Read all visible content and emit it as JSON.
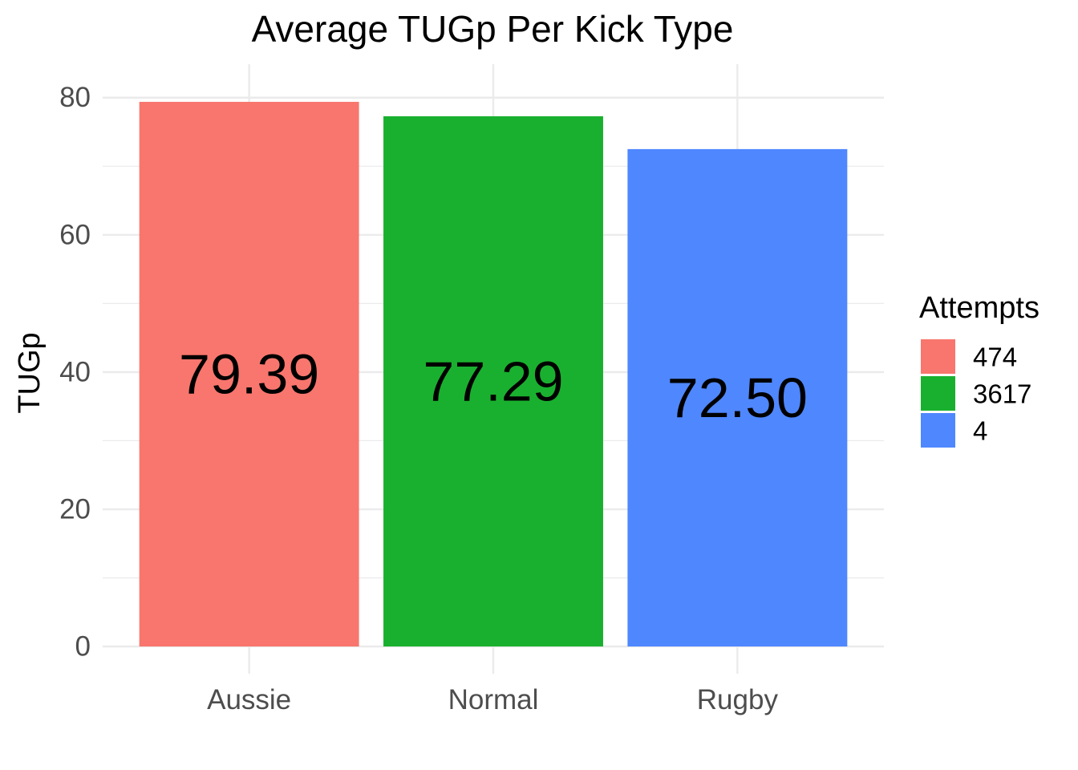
{
  "chart_data": {
    "type": "bar",
    "title": "Average TUGp Per Kick Type",
    "xlabel": "",
    "ylabel": "TUGp",
    "categories": [
      "Aussie",
      "Normal",
      "Rugby"
    ],
    "values": [
      79.39,
      77.29,
      72.5
    ],
    "data_labels": [
      "79.39",
      "77.29",
      "72.50"
    ],
    "ylim": [
      0,
      80
    ],
    "yticks": [
      0,
      20,
      40,
      60,
      80
    ],
    "grid": true,
    "legend": {
      "title": "Attempts",
      "placement": "right",
      "entries": [
        {
          "label": "474",
          "color": "#F8766D"
        },
        {
          "label": "3617",
          "color": "#1AB02F"
        },
        {
          "label": "4",
          "color": "#4F87FF"
        }
      ]
    },
    "colors": [
      "#F8766D",
      "#1AB02F",
      "#4F87FF"
    ]
  }
}
